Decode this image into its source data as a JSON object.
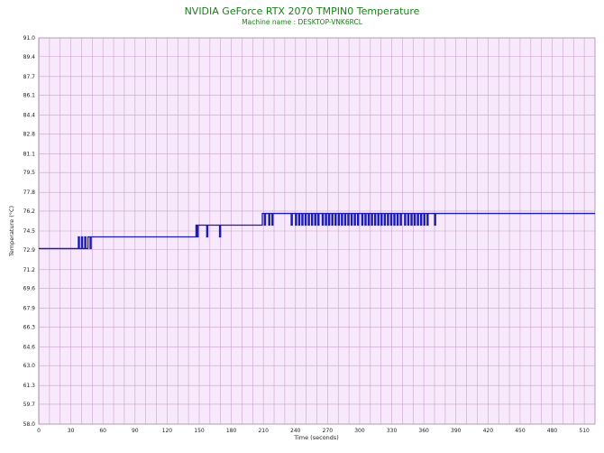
{
  "chart_data": {
    "type": "line",
    "title": "NVIDIA GeForce RTX 2070 TMPIN0 Temperature",
    "subtitle": "Machine name : DESKTOP-VNK6RCL",
    "xlabel": "Time (seconds)",
    "ylabel": "Temperature (°C)",
    "xlim": [
      0,
      520
    ],
    "ylim": [
      58.0,
      91.0
    ],
    "x_ticks": [
      "0",
      "30",
      "60",
      "90",
      "120",
      "150",
      "180",
      "210",
      "240",
      "270",
      "300",
      "330",
      "360",
      "390",
      "420",
      "450",
      "480",
      "510"
    ],
    "y_ticks": [
      "58.0",
      "59.7",
      "61.3",
      "63.0",
      "64.6",
      "66.3",
      "67.9",
      "69.6",
      "71.2",
      "72.9",
      "74.5",
      "76.2",
      "77.8",
      "79.5",
      "81.1",
      "82.8",
      "84.4",
      "86.1",
      "87.7",
      "89.4",
      "91.0"
    ],
    "grid": true,
    "colors": {
      "background": "#f7e8fb",
      "grid": "#c9a3cc",
      "line": "#1c1cb0"
    },
    "series": [
      {
        "values": [
          [
            0,
            73
          ],
          [
            37,
            73
          ],
          [
            37,
            74
          ],
          [
            38,
            74
          ],
          [
            38,
            73
          ],
          [
            40,
            73
          ],
          [
            40,
            74
          ],
          [
            41,
            74
          ],
          [
            41,
            73
          ],
          [
            43,
            73
          ],
          [
            43,
            74
          ],
          [
            44,
            74
          ],
          [
            44,
            73
          ],
          [
            46,
            73
          ],
          [
            46,
            74
          ],
          [
            48,
            74
          ],
          [
            48,
            73
          ],
          [
            49,
            73
          ],
          [
            49,
            74
          ],
          [
            147,
            74
          ],
          [
            147,
            75
          ],
          [
            148,
            75
          ],
          [
            148,
            74
          ],
          [
            149,
            74
          ],
          [
            149,
            75
          ],
          [
            157,
            75
          ],
          [
            157,
            74
          ],
          [
            158,
            74
          ],
          [
            158,
            75
          ],
          [
            169,
            75
          ],
          [
            169,
            74
          ],
          [
            170,
            74
          ],
          [
            170,
            75
          ],
          [
            209,
            75
          ],
          [
            209,
            76
          ],
          [
            211,
            76
          ],
          [
            211,
            75
          ],
          [
            212,
            75
          ],
          [
            212,
            76
          ],
          [
            215,
            76
          ],
          [
            215,
            75
          ],
          [
            216,
            75
          ],
          [
            216,
            76
          ],
          [
            218,
            76
          ],
          [
            218,
            75
          ],
          [
            219,
            75
          ],
          [
            219,
            76
          ],
          [
            236,
            76
          ],
          [
            236,
            75
          ],
          [
            237,
            75
          ],
          [
            237,
            76
          ],
          [
            240,
            76
          ],
          [
            240,
            75
          ],
          [
            241,
            75
          ],
          [
            241,
            76
          ],
          [
            243,
            76
          ],
          [
            243,
            75
          ],
          [
            244,
            75
          ],
          [
            244,
            76
          ],
          [
            246,
            76
          ],
          [
            246,
            75
          ],
          [
            247,
            75
          ],
          [
            247,
            76
          ],
          [
            249,
            76
          ],
          [
            249,
            75
          ],
          [
            250,
            75
          ],
          [
            250,
            76
          ],
          [
            252,
            76
          ],
          [
            252,
            75
          ],
          [
            253,
            75
          ],
          [
            253,
            76
          ],
          [
            255,
            76
          ],
          [
            255,
            75
          ],
          [
            256,
            75
          ],
          [
            256,
            76
          ],
          [
            258,
            76
          ],
          [
            258,
            75
          ],
          [
            259,
            75
          ],
          [
            259,
            76
          ],
          [
            261,
            76
          ],
          [
            261,
            75
          ],
          [
            262,
            75
          ],
          [
            262,
            76
          ],
          [
            265,
            76
          ],
          [
            265,
            75
          ],
          [
            266,
            75
          ],
          [
            266,
            76
          ],
          [
            268,
            76
          ],
          [
            268,
            75
          ],
          [
            269,
            75
          ],
          [
            269,
            76
          ],
          [
            271,
            76
          ],
          [
            271,
            75
          ],
          [
            272,
            75
          ],
          [
            272,
            76
          ],
          [
            274,
            76
          ],
          [
            274,
            75
          ],
          [
            275,
            75
          ],
          [
            275,
            76
          ],
          [
            277,
            76
          ],
          [
            277,
            75
          ],
          [
            278,
            75
          ],
          [
            278,
            76
          ],
          [
            280,
            76
          ],
          [
            280,
            75
          ],
          [
            281,
            75
          ],
          [
            281,
            76
          ],
          [
            283,
            76
          ],
          [
            283,
            75
          ],
          [
            284,
            75
          ],
          [
            284,
            76
          ],
          [
            286,
            76
          ],
          [
            286,
            75
          ],
          [
            287,
            75
          ],
          [
            287,
            76
          ],
          [
            289,
            76
          ],
          [
            289,
            75
          ],
          [
            290,
            75
          ],
          [
            290,
            76
          ],
          [
            292,
            76
          ],
          [
            292,
            75
          ],
          [
            293,
            75
          ],
          [
            293,
            76
          ],
          [
            295,
            76
          ],
          [
            295,
            75
          ],
          [
            296,
            75
          ],
          [
            296,
            76
          ],
          [
            298,
            76
          ],
          [
            298,
            75
          ],
          [
            299,
            75
          ],
          [
            299,
            76
          ],
          [
            302,
            76
          ],
          [
            302,
            75
          ],
          [
            303,
            75
          ],
          [
            303,
            76
          ],
          [
            305,
            76
          ],
          [
            305,
            75
          ],
          [
            306,
            75
          ],
          [
            306,
            76
          ],
          [
            308,
            76
          ],
          [
            308,
            75
          ],
          [
            309,
            75
          ],
          [
            309,
            76
          ],
          [
            311,
            76
          ],
          [
            311,
            75
          ],
          [
            312,
            75
          ],
          [
            312,
            76
          ],
          [
            314,
            76
          ],
          [
            314,
            75
          ],
          [
            315,
            75
          ],
          [
            315,
            76
          ],
          [
            317,
            76
          ],
          [
            317,
            75
          ],
          [
            318,
            75
          ],
          [
            318,
            76
          ],
          [
            320,
            76
          ],
          [
            320,
            75
          ],
          [
            321,
            75
          ],
          [
            321,
            76
          ],
          [
            323,
            76
          ],
          [
            323,
            75
          ],
          [
            324,
            75
          ],
          [
            324,
            76
          ],
          [
            326,
            76
          ],
          [
            326,
            75
          ],
          [
            327,
            75
          ],
          [
            327,
            76
          ],
          [
            329,
            76
          ],
          [
            329,
            75
          ],
          [
            330,
            75
          ],
          [
            330,
            76
          ],
          [
            332,
            76
          ],
          [
            332,
            75
          ],
          [
            333,
            75
          ],
          [
            333,
            76
          ],
          [
            335,
            76
          ],
          [
            335,
            75
          ],
          [
            336,
            75
          ],
          [
            336,
            76
          ],
          [
            338,
            76
          ],
          [
            338,
            75
          ],
          [
            339,
            75
          ],
          [
            339,
            76
          ],
          [
            342,
            76
          ],
          [
            342,
            75
          ],
          [
            343,
            75
          ],
          [
            343,
            76
          ],
          [
            345,
            76
          ],
          [
            345,
            75
          ],
          [
            346,
            75
          ],
          [
            346,
            76
          ],
          [
            348,
            76
          ],
          [
            348,
            75
          ],
          [
            349,
            75
          ],
          [
            349,
            76
          ],
          [
            351,
            76
          ],
          [
            351,
            75
          ],
          [
            352,
            75
          ],
          [
            352,
            76
          ],
          [
            354,
            76
          ],
          [
            354,
            75
          ],
          [
            355,
            75
          ],
          [
            355,
            76
          ],
          [
            357,
            76
          ],
          [
            357,
            75
          ],
          [
            358,
            75
          ],
          [
            358,
            76
          ],
          [
            360,
            76
          ],
          [
            360,
            75
          ],
          [
            361,
            75
          ],
          [
            361,
            76
          ],
          [
            363,
            76
          ],
          [
            363,
            75
          ],
          [
            364,
            75
          ],
          [
            364,
            76
          ],
          [
            370,
            76
          ],
          [
            370,
            75
          ],
          [
            371,
            75
          ],
          [
            371,
            76
          ],
          [
            520,
            76
          ]
        ]
      }
    ]
  }
}
